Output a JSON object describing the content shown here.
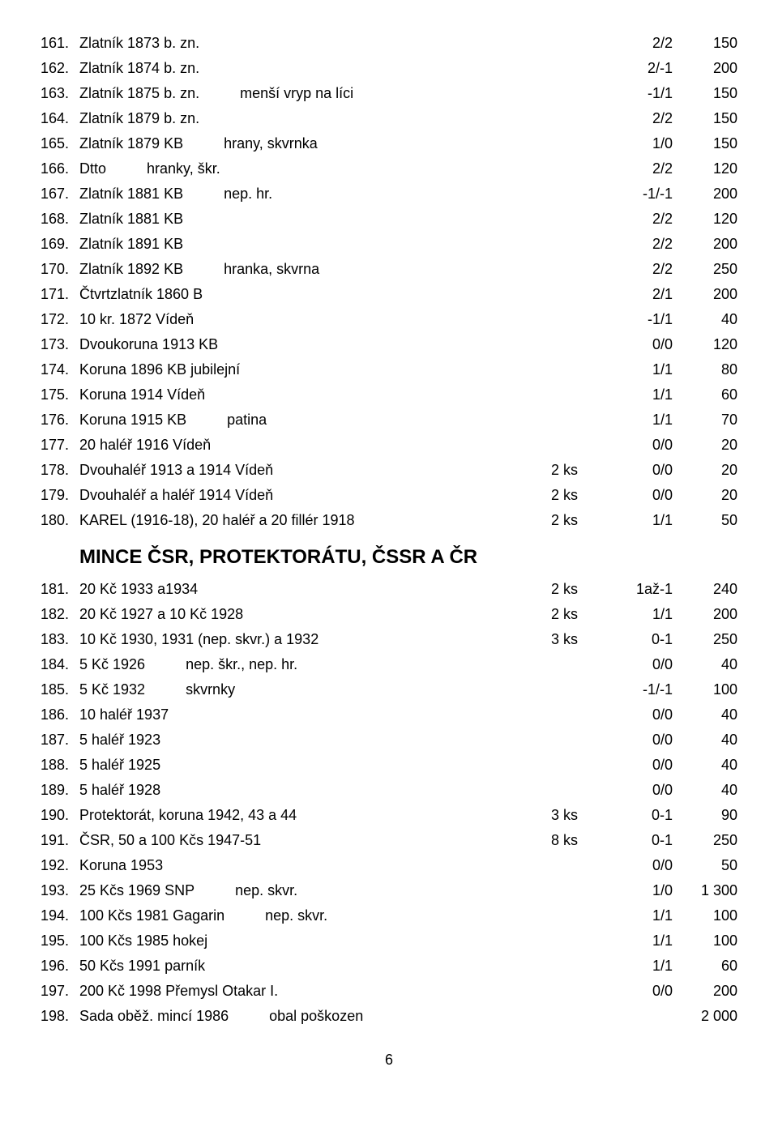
{
  "rows": [
    {
      "n": "161.",
      "main": "Zlatník 1873 b. zn.",
      "extra": "",
      "qty": "",
      "cond": "2/2",
      "price": "150"
    },
    {
      "n": "162.",
      "main": "Zlatník 1874 b. zn.",
      "extra": "",
      "qty": "",
      "cond": "2/-1",
      "price": "200"
    },
    {
      "n": "163.",
      "main": "Zlatník 1875 b. zn.",
      "extra": "menší vryp na líci",
      "qty": "",
      "cond": "-1/1",
      "price": "150"
    },
    {
      "n": "164.",
      "main": "Zlatník 1879 b. zn.",
      "extra": "",
      "qty": "",
      "cond": "2/2",
      "price": "150"
    },
    {
      "n": "165.",
      "main": "Zlatník 1879 KB",
      "extra": "hrany, skvrnka",
      "qty": "",
      "cond": "1/0",
      "price": "150"
    },
    {
      "n": "166.",
      "main": "Dtto",
      "extra": "hranky, škr.",
      "qty": "",
      "cond": "2/2",
      "price": "120"
    },
    {
      "n": "167.",
      "main": "Zlatník 1881 KB",
      "extra": "nep. hr.",
      "qty": "",
      "cond": "-1/-1",
      "price": "200"
    },
    {
      "n": "168.",
      "main": "Zlatník 1881 KB",
      "extra": "",
      "qty": "",
      "cond": "2/2",
      "price": "120"
    },
    {
      "n": "169.",
      "main": "Zlatník 1891 KB",
      "extra": "",
      "qty": "",
      "cond": "2/2",
      "price": "200"
    },
    {
      "n": "170.",
      "main": "Zlatník 1892 KB",
      "extra": "hranka, skvrna",
      "qty": "",
      "cond": "2/2",
      "price": "250"
    },
    {
      "n": "171.",
      "main": "Čtvrtzlatník 1860 B",
      "extra": "",
      "qty": "",
      "cond": "2/1",
      "price": "200"
    },
    {
      "n": "172.",
      "main": "10 kr. 1872 Vídeň",
      "extra": "",
      "qty": "",
      "cond": "-1/1",
      "price": "40"
    },
    {
      "n": "173.",
      "main": "Dvoukoruna 1913 KB",
      "extra": "",
      "qty": "",
      "cond": "0/0",
      "price": "120"
    },
    {
      "n": "174.",
      "main": "Koruna 1896 KB jubilejní",
      "extra": "",
      "qty": "",
      "cond": "1/1",
      "price": "80"
    },
    {
      "n": "175.",
      "main": "Koruna 1914 Vídeň",
      "extra": "",
      "qty": "",
      "cond": "1/1",
      "price": "60"
    },
    {
      "n": "176.",
      "main": "Koruna 1915 KB",
      "extra": "patina",
      "qty": "",
      "cond": "1/1",
      "price": "70"
    },
    {
      "n": "177.",
      "main": "20 haléř 1916 Vídeň",
      "extra": "",
      "qty": "",
      "cond": "0/0",
      "price": "20"
    },
    {
      "n": "178.",
      "main": "Dvouhaléř 1913 a 1914 Vídeň",
      "extra": "",
      "qty": "2 ks",
      "cond": "0/0",
      "price": "20"
    },
    {
      "n": "179.",
      "main": "Dvouhaléř a haléř 1914 Vídeň",
      "extra": "",
      "qty": "2 ks",
      "cond": "0/0",
      "price": "20"
    },
    {
      "n": "180.",
      "main": "KAREL (1916-18), 20 haléř a 20 fillér 1918",
      "extra": "",
      "qty": "2 ks",
      "cond": "1/1",
      "price": "50"
    }
  ],
  "section": "MINCE  ČSR,  PROTEKTORÁTU,  ČSSR  A  ČR",
  "rows2": [
    {
      "n": "181.",
      "main": "20 Kč 1933 a1934",
      "extra": "",
      "qty": "2 ks",
      "cond": "1až-1",
      "price": "240"
    },
    {
      "n": "182.",
      "main": "20 Kč 1927 a 10 Kč 1928",
      "extra": "",
      "qty": "2 ks",
      "cond": "1/1",
      "price": "200"
    },
    {
      "n": "183.",
      "main": "10 Kč 1930, 1931 (nep. skvr.) a 1932",
      "extra": "",
      "qty": "3 ks",
      "cond": "0-1",
      "price": "250"
    },
    {
      "n": "184.",
      "main": "5 Kč 1926",
      "extra": "nep. škr., nep. hr.",
      "qty": "",
      "cond": "0/0",
      "price": "40"
    },
    {
      "n": "185.",
      "main": "5 Kč 1932",
      "extra": "skvrnky",
      "qty": "",
      "cond": "-1/-1",
      "price": "100"
    },
    {
      "n": "186.",
      "main": "10 haléř 1937",
      "extra": "",
      "qty": "",
      "cond": "0/0",
      "price": "40"
    },
    {
      "n": "187.",
      "main": "5 haléř 1923",
      "extra": "",
      "qty": "",
      "cond": "0/0",
      "price": "40"
    },
    {
      "n": "188.",
      "main": "5 haléř 1925",
      "extra": "",
      "qty": "",
      "cond": "0/0",
      "price": "40"
    },
    {
      "n": "189.",
      "main": "5 haléř 1928",
      "extra": "",
      "qty": "",
      "cond": "0/0",
      "price": "40"
    },
    {
      "n": "190.",
      "main": "Protektorát, koruna 1942, 43 a 44",
      "extra": "",
      "qty": "3 ks",
      "cond": "0-1",
      "price": "90"
    },
    {
      "n": "191.",
      "main": "ČSR, 50 a 100 Kčs 1947-51",
      "extra": "",
      "qty": "8 ks",
      "cond": "0-1",
      "price": "250"
    },
    {
      "n": "192.",
      "main": "Koruna 1953",
      "extra": "",
      "qty": "",
      "cond": "0/0",
      "price": "50"
    },
    {
      "n": "193.",
      "main": "25 Kčs 1969 SNP",
      "extra": "nep. skvr.",
      "qty": "",
      "cond": "1/0",
      "price": "1 300"
    },
    {
      "n": "194.",
      "main": "100 Kčs 1981 Gagarin",
      "extra": "nep. skvr.",
      "qty": "",
      "cond": "1/1",
      "price": "100"
    },
    {
      "n": "195.",
      "main": "100 Kčs 1985 hokej",
      "extra": "",
      "qty": "",
      "cond": "1/1",
      "price": "100"
    },
    {
      "n": "196.",
      "main": "50 Kčs 1991 parník",
      "extra": "",
      "qty": "",
      "cond": "1/1",
      "price": "60"
    },
    {
      "n": "197.",
      "main": "200 Kč 1998 Přemysl Otakar I.",
      "extra": "",
      "qty": "",
      "cond": "0/0",
      "price": "200"
    },
    {
      "n": "198.",
      "main": "Sada oběž. mincí 1986",
      "extra": "obal poškozen",
      "qty": "",
      "cond": "",
      "price": "2 000"
    }
  ],
  "pagenum": "6"
}
